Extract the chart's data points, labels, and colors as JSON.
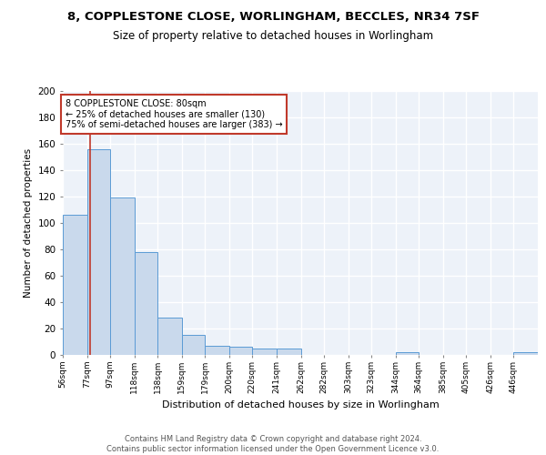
{
  "title1": "8, COPPLESTONE CLOSE, WORLINGHAM, BECCLES, NR34 7SF",
  "title2": "Size of property relative to detached houses in Worlingham",
  "xlabel": "Distribution of detached houses by size in Worlingham",
  "ylabel": "Number of detached properties",
  "bar_edges": [
    56,
    77,
    97,
    118,
    138,
    159,
    179,
    200,
    220,
    241,
    262,
    282,
    303,
    323,
    344,
    364,
    385,
    405,
    426,
    446,
    467
  ],
  "bar_heights": [
    106,
    156,
    119,
    78,
    28,
    15,
    7,
    6,
    5,
    5,
    0,
    0,
    0,
    0,
    2,
    0,
    0,
    0,
    0,
    2
  ],
  "bar_color": "#c9d9ec",
  "bar_edge_color": "#5b9bd5",
  "vline_x": 80,
  "vline_color": "#c0392b",
  "annotation_line1": "8 COPPLESTONE CLOSE: 80sqm",
  "annotation_line2": "← 25% of detached houses are smaller (130)",
  "annotation_line3": "75% of semi-detached houses are larger (383) →",
  "annotation_box_color": "white",
  "annotation_box_edge_color": "#c0392b",
  "background_color": "#edf2f9",
  "grid_color": "white",
  "footer_text": "Contains HM Land Registry data © Crown copyright and database right 2024.\nContains public sector information licensed under the Open Government Licence v3.0.",
  "ylim": [
    0,
    200
  ],
  "xlim": [
    56,
    467
  ],
  "yticks": [
    0,
    20,
    40,
    60,
    80,
    100,
    120,
    140,
    160,
    180,
    200
  ]
}
